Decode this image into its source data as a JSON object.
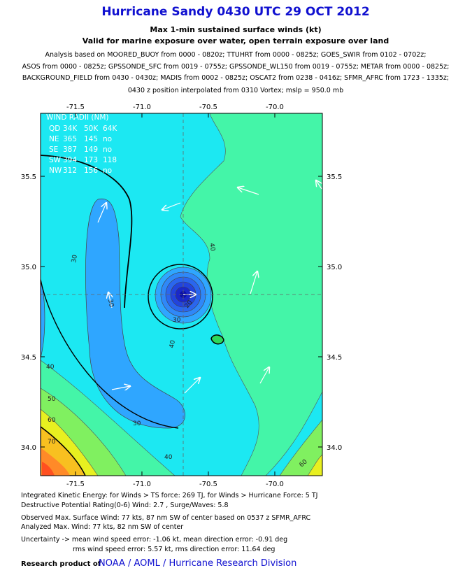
{
  "header": {
    "title": "Hurricane Sandy 0430 UTC 29 OCT 2012",
    "subtitle": "Max 1-min sustained surface winds (kt)",
    "validity": "Valid for marine exposure over water, open terrain exposure over land",
    "analysis_lines": [
      "Analysis based on MOORED_BUOY from 0000 - 0820z; TTUHRT from 0000 - 0825z; GOES_SWIR from 0102 - 0702z;",
      "ASOS from 0000 - 0825z; GPSSONDE_SFC from 0019 - 0755z; GPSSONDE_WL150 from 0019 - 0755z; METAR from 0000 - 0825z;",
      "BACKGROUND_FIELD from 0430 - 0430z; MADIS from 0002 - 0825z; OSCAT2 from 0238 - 0416z; SFMR_AFRC from 1723 - 1335z;"
    ],
    "position_note": "0430 z position interpolated from 0310 Vortex; mslp = 950.0 mb"
  },
  "map": {
    "xlim": [
      -71.763,
      -69.642
    ],
    "ylim": [
      33.841,
      35.849
    ],
    "xticks": [
      {
        "value": -71.5,
        "label": "-71.5"
      },
      {
        "value": -71.0,
        "label": "-71.0"
      },
      {
        "value": -70.5,
        "label": "-70.5"
      },
      {
        "value": -70.0,
        "label": "-70.0"
      }
    ],
    "yticks": [
      {
        "value": 34.0,
        "label": "34.0"
      },
      {
        "value": 34.5,
        "label": "34.5"
      },
      {
        "value": 35.0,
        "label": "35.0"
      },
      {
        "value": 35.5,
        "label": "35.5"
      }
    ],
    "wind_radii": {
      "title": "WIND RADII (NM)",
      "header": [
        "QD",
        "34K",
        "50K",
        "64K"
      ],
      "rows": [
        [
          "NE",
          "365",
          "145",
          "no"
        ],
        [
          "SE",
          "387",
          "149",
          "no"
        ],
        [
          "SW",
          "394",
          "173",
          "118"
        ],
        [
          "NW",
          "312",
          "156",
          "no"
        ]
      ]
    },
    "contour_labels": [
      30,
      30,
      30,
      30,
      40,
      40,
      40,
      40,
      50,
      60,
      70,
      60,
      20
    ]
  },
  "footer": {
    "ike": "Integrated Kinetic Energy: for Winds > TS force: 269 TJ, for Winds > Hurricane Force: 5 TJ",
    "dpr": "Destructive Potential Rating(0-6)  Wind: 2.7 , Surge/Waves: 5.8",
    "observed": "Observed Max. Surface Wind: 77 kts, 87 nm SW of center based on 0537 z SFMR_AFRC",
    "analyzed": "Analyzed Max. Wind: 77 kts, 82 nm  SW of center",
    "uncertainty": "Uncertainty -> mean wind speed error:  -1.06 kt, mean direction error:  -0.91 deg",
    "rms": "rms wind speed error: 5.57 kt, rms direction error: 11.64 deg",
    "credit_prefix": "Research product of",
    "credit": "NOAA / AOML / Hurricane Research Division"
  }
}
